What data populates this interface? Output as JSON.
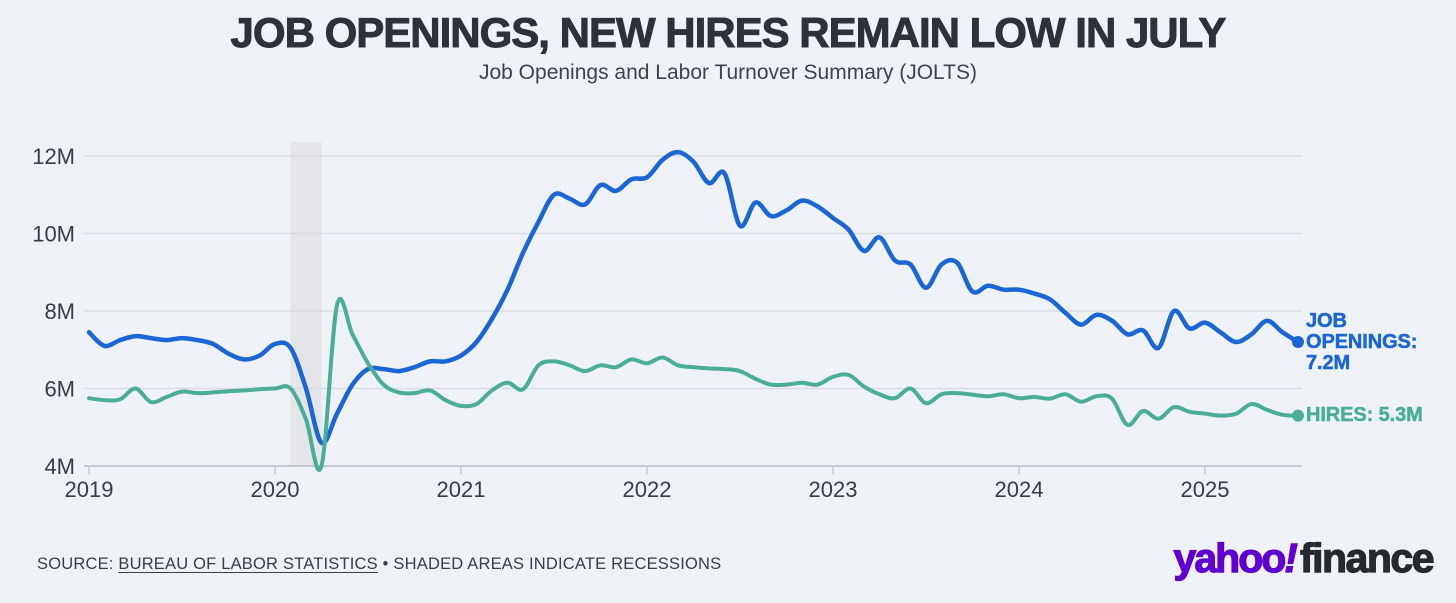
{
  "header": {
    "title": "JOB OPENINGS, NEW HIRES REMAIN LOW IN JULY",
    "subtitle": "Job Openings and Labor Turnover Summary (JOLTS)"
  },
  "footer": {
    "source_prefix": "SOURCE:",
    "source_link": "BUREAU OF LABOR STATISTICS",
    "bullet": "•",
    "note": "SHADED AREAS INDICATE RECESSIONS"
  },
  "logo": {
    "yahoo": "yahoo",
    "bang": "!",
    "finance": "finance",
    "purple": "#5f01d1",
    "dark": "#26292e"
  },
  "chart_data": {
    "type": "line",
    "title": "JOB OPENINGS, NEW HIRES REMAIN LOW IN JULY",
    "subtitle": "Job Openings and Labor Turnover Summary (JOLTS)",
    "unit": "millions of jobs",
    "frequency": "monthly",
    "x_start": "2019-01",
    "x_end": "2025-07",
    "x_tick_labels": [
      "2019",
      "2020",
      "2021",
      "2022",
      "2023",
      "2024",
      "2025"
    ],
    "y_tick_labels": [
      "12M",
      "10M",
      "8M",
      "6M",
      "4M"
    ],
    "y_tick_values": [
      12,
      10,
      8,
      6,
      4
    ],
    "ylim": [
      4,
      12.4
    ],
    "grid": "horizontal",
    "legend": "inline-end-labels",
    "recession_band": {
      "start": "2020-02",
      "end": "2020-04"
    },
    "background_color": "#eef2f7",
    "gridline_color": "#d9dce2",
    "series": [
      {
        "name": "Job Openings",
        "color": "#1a66d6",
        "end_label": "JOB OPENINGS: 7.2M",
        "latest_value_label": "7.2M",
        "values": [
          7.45,
          7.1,
          7.25,
          7.35,
          7.3,
          7.25,
          7.3,
          7.25,
          7.15,
          6.9,
          6.75,
          6.85,
          7.15,
          7.05,
          6.0,
          4.6,
          5.35,
          6.1,
          6.5,
          6.5,
          6.45,
          6.55,
          6.7,
          6.7,
          6.85,
          7.2,
          7.8,
          8.55,
          9.5,
          10.3,
          11.0,
          10.9,
          10.75,
          11.25,
          11.1,
          11.4,
          11.45,
          11.9,
          12.1,
          11.85,
          11.3,
          11.55,
          10.2,
          10.8,
          10.45,
          10.6,
          10.85,
          10.7,
          10.4,
          10.1,
          9.55,
          9.9,
          9.3,
          9.2,
          8.6,
          9.2,
          9.25,
          8.5,
          8.65,
          8.55,
          8.55,
          8.45,
          8.3,
          7.95,
          7.65,
          7.9,
          7.75,
          7.4,
          7.5,
          7.05,
          8.0,
          7.55,
          7.7,
          7.45,
          7.2,
          7.4,
          7.75,
          7.45,
          7.2
        ]
      },
      {
        "name": "Hires",
        "color": "#4aae96",
        "end_label": "HIRES: 5.3M",
        "latest_value_label": "5.3M",
        "values": [
          5.75,
          5.7,
          5.72,
          6.0,
          5.65,
          5.78,
          5.92,
          5.88,
          5.9,
          5.93,
          5.95,
          5.98,
          6.0,
          6.0,
          5.2,
          4.0,
          8.15,
          7.4,
          6.65,
          6.1,
          5.9,
          5.88,
          5.95,
          5.7,
          5.55,
          5.6,
          5.95,
          6.15,
          5.98,
          6.6,
          6.7,
          6.6,
          6.45,
          6.6,
          6.55,
          6.75,
          6.65,
          6.8,
          6.6,
          6.55,
          6.52,
          6.5,
          6.45,
          6.25,
          6.1,
          6.1,
          6.15,
          6.1,
          6.3,
          6.35,
          6.05,
          5.85,
          5.75,
          6.0,
          5.62,
          5.85,
          5.88,
          5.84,
          5.8,
          5.85,
          5.75,
          5.78,
          5.74,
          5.85,
          5.66,
          5.8,
          5.74,
          5.06,
          5.42,
          5.22,
          5.52,
          5.4,
          5.35,
          5.3,
          5.35,
          5.6,
          5.45,
          5.32,
          5.3
        ]
      }
    ]
  }
}
